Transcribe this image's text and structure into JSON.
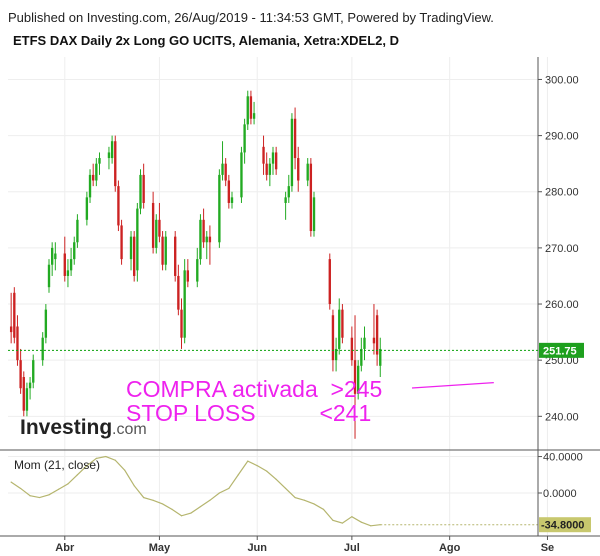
{
  "published": "Published on Investing.com, 26/Aug/2019 - 11:34:53 GMT, Powered by TradingView.",
  "title": "ETFS DAX Daily 2x Long GO UCITS, Alemania, Xetra:XDEL2, D",
  "logo": {
    "main": "Investing",
    "suffix": ".com"
  },
  "annotations": {
    "line1": "COMPRA activada  >245",
    "line2": "STOP LOSS          <241"
  },
  "colors": {
    "up": "#22aa22",
    "down": "#cc2222",
    "annotation": "#ee22ee",
    "momentum": "#b5b56e",
    "price_line": "#0aa00a"
  },
  "chart_data": [
    {
      "type": "candlestick",
      "title": "ETFS DAX Daily 2x Long GO UCITS, Alemania, Xetra:XDEL2, D",
      "ylim": [
        234,
        304
      ],
      "yticks": [
        "300.00",
        "290.00",
        "280.00",
        "270.00",
        "260.00",
        "250.00",
        "240.00"
      ],
      "xticks": [
        {
          "label": "Abr",
          "day": 17
        },
        {
          "label": "May",
          "day": 47
        },
        {
          "label": "Jun",
          "day": 78
        },
        {
          "label": "Jul",
          "day": 108
        },
        {
          "label": "Ago",
          "day": 139
        },
        {
          "label": "Se",
          "day": 170
        }
      ],
      "xrange": [
        -1,
        167
      ],
      "last_price": 251.75,
      "last_price_label": "251.75",
      "annotation_target": {
        "day": 153,
        "price": 246
      },
      "candles": [
        {
          "d": 0,
          "o": 256,
          "h": 262,
          "l": 253,
          "c": 255
        },
        {
          "d": 1,
          "o": 262,
          "h": 263,
          "l": 253,
          "c": 254
        },
        {
          "d": 2,
          "o": 256,
          "h": 258,
          "l": 249,
          "c": 250
        },
        {
          "d": 3,
          "o": 250,
          "h": 252,
          "l": 244,
          "c": 245
        },
        {
          "d": 4,
          "o": 247,
          "h": 248,
          "l": 240,
          "c": 241
        },
        {
          "d": 5,
          "o": 241,
          "h": 246,
          "l": 240,
          "c": 245
        },
        {
          "d": 6,
          "o": 245,
          "h": 247,
          "l": 243,
          "c": 246
        },
        {
          "d": 7,
          "o": 246,
          "h": 251,
          "l": 245,
          "c": 250
        },
        {
          "d": 10,
          "o": 250,
          "h": 255,
          "l": 249,
          "c": 254
        },
        {
          "d": 11,
          "o": 254,
          "h": 260,
          "l": 253,
          "c": 259
        },
        {
          "d": 12,
          "o": 263,
          "h": 268,
          "l": 262,
          "c": 267
        },
        {
          "d": 13,
          "o": 267,
          "h": 271,
          "l": 265,
          "c": 270
        },
        {
          "d": 14,
          "o": 268,
          "h": 271,
          "l": 266,
          "c": 269
        },
        {
          "d": 17,
          "o": 269,
          "h": 272,
          "l": 264,
          "c": 265
        },
        {
          "d": 18,
          "o": 265,
          "h": 268,
          "l": 263,
          "c": 266
        },
        {
          "d": 19,
          "o": 266,
          "h": 270,
          "l": 265,
          "c": 268
        },
        {
          "d": 20,
          "o": 268,
          "h": 272,
          "l": 267,
          "c": 271
        },
        {
          "d": 21,
          "o": 271,
          "h": 276,
          "l": 270,
          "c": 275
        },
        {
          "d": 24,
          "o": 275,
          "h": 280,
          "l": 274,
          "c": 279
        },
        {
          "d": 25,
          "o": 279,
          "h": 284,
          "l": 278,
          "c": 283
        },
        {
          "d": 26,
          "o": 283,
          "h": 285,
          "l": 281,
          "c": 282
        },
        {
          "d": 27,
          "o": 282,
          "h": 286,
          "l": 281,
          "c": 285
        },
        {
          "d": 28,
          "o": 285,
          "h": 287,
          "l": 283,
          "c": 286
        },
        {
          "d": 31,
          "o": 286,
          "h": 288,
          "l": 284,
          "c": 287
        },
        {
          "d": 32,
          "o": 286,
          "h": 290,
          "l": 285,
          "c": 289
        },
        {
          "d": 33,
          "o": 289,
          "h": 290,
          "l": 280,
          "c": 281
        },
        {
          "d": 34,
          "o": 281,
          "h": 282,
          "l": 273,
          "c": 274
        },
        {
          "d": 35,
          "o": 274,
          "h": 275,
          "l": 267,
          "c": 268
        },
        {
          "d": 38,
          "o": 268,
          "h": 273,
          "l": 266,
          "c": 272
        },
        {
          "d": 39,
          "o": 272,
          "h": 273,
          "l": 264,
          "c": 265
        },
        {
          "d": 40,
          "o": 266,
          "h": 278,
          "l": 264,
          "c": 277
        },
        {
          "d": 41,
          "o": 277,
          "h": 284,
          "l": 276,
          "c": 283
        },
        {
          "d": 42,
          "o": 283,
          "h": 285,
          "l": 277,
          "c": 278
        },
        {
          "d": 45,
          "o": 278,
          "h": 280,
          "l": 269,
          "c": 270
        },
        {
          "d": 46,
          "o": 270,
          "h": 276,
          "l": 269,
          "c": 275
        },
        {
          "d": 47,
          "o": 275,
          "h": 278,
          "l": 271,
          "c": 272
        },
        {
          "d": 48,
          "o": 272,
          "h": 273,
          "l": 266,
          "c": 267
        },
        {
          "d": 49,
          "o": 267,
          "h": 273,
          "l": 266,
          "c": 272
        },
        {
          "d": 52,
          "o": 272,
          "h": 273,
          "l": 264,
          "c": 265
        },
        {
          "d": 53,
          "o": 265,
          "h": 267,
          "l": 258,
          "c": 259
        },
        {
          "d": 54,
          "o": 259,
          "h": 261,
          "l": 252,
          "c": 254
        },
        {
          "d": 55,
          "o": 254,
          "h": 268,
          "l": 253,
          "c": 266
        },
        {
          "d": 56,
          "o": 266,
          "h": 268,
          "l": 263,
          "c": 264
        },
        {
          "d": 59,
          "o": 264,
          "h": 270,
          "l": 263,
          "c": 268
        },
        {
          "d": 60,
          "o": 268,
          "h": 276,
          "l": 267,
          "c": 275
        },
        {
          "d": 61,
          "o": 275,
          "h": 277,
          "l": 270,
          "c": 271
        },
        {
          "d": 62,
          "o": 271,
          "h": 273,
          "l": 268,
          "c": 272
        },
        {
          "d": 63,
          "o": 272,
          "h": 274,
          "l": 267,
          "c": 271
        },
        {
          "d": 66,
          "o": 271,
          "h": 284,
          "l": 270,
          "c": 283
        },
        {
          "d": 67,
          "o": 283,
          "h": 289,
          "l": 282,
          "c": 285
        },
        {
          "d": 68,
          "o": 285,
          "h": 286,
          "l": 281,
          "c": 282
        },
        {
          "d": 69,
          "o": 282,
          "h": 283,
          "l": 277,
          "c": 278
        },
        {
          "d": 70,
          "o": 278,
          "h": 280,
          "l": 277,
          "c": 279
        },
        {
          "d": 73,
          "o": 279,
          "h": 288,
          "l": 278,
          "c": 287
        },
        {
          "d": 74,
          "o": 287,
          "h": 293,
          "l": 285,
          "c": 292
        },
        {
          "d": 75,
          "o": 292,
          "h": 298,
          "l": 291,
          "c": 297
        },
        {
          "d": 76,
          "o": 297,
          "h": 298,
          "l": 292,
          "c": 293
        },
        {
          "d": 77,
          "o": 293,
          "h": 296,
          "l": 292,
          "c": 294
        },
        {
          "d": 80,
          "o": 288,
          "h": 290,
          "l": 283,
          "c": 285
        },
        {
          "d": 81,
          "o": 285,
          "h": 287,
          "l": 282,
          "c": 283
        },
        {
          "d": 82,
          "o": 283,
          "h": 286,
          "l": 281,
          "c": 285
        },
        {
          "d": 83,
          "o": 285,
          "h": 288,
          "l": 283,
          "c": 287
        },
        {
          "d": 84,
          "o": 287,
          "h": 288,
          "l": 283,
          "c": 284
        },
        {
          "d": 87,
          "o": 278,
          "h": 280,
          "l": 275,
          "c": 279
        },
        {
          "d": 88,
          "o": 279,
          "h": 283,
          "l": 278,
          "c": 281
        },
        {
          "d": 89,
          "o": 281,
          "h": 294,
          "l": 280,
          "c": 293
        },
        {
          "d": 90,
          "o": 293,
          "h": 295,
          "l": 284,
          "c": 286
        },
        {
          "d": 91,
          "o": 286,
          "h": 288,
          "l": 280,
          "c": 282
        },
        {
          "d": 94,
          "o": 282,
          "h": 286,
          "l": 281,
          "c": 285
        },
        {
          "d": 95,
          "o": 285,
          "h": 286,
          "l": 272,
          "c": 273
        },
        {
          "d": 96,
          "o": 273,
          "h": 280,
          "l": 272,
          "c": 279
        },
        {
          "d": 101,
          "o": 268,
          "h": 269,
          "l": 259,
          "c": 260
        },
        {
          "d": 102,
          "o": 258,
          "h": 259,
          "l": 248,
          "c": 250
        },
        {
          "d": 103,
          "o": 250,
          "h": 254,
          "l": 248,
          "c": 252
        },
        {
          "d": 104,
          "o": 252,
          "h": 261,
          "l": 251,
          "c": 259
        },
        {
          "d": 105,
          "o": 259,
          "h": 260,
          "l": 253,
          "c": 254
        },
        {
          "d": 108,
          "o": 254,
          "h": 256,
          "l": 249,
          "c": 250
        },
        {
          "d": 109,
          "o": 250,
          "h": 258,
          "l": 236,
          "c": 244
        },
        {
          "d": 110,
          "o": 244,
          "h": 250,
          "l": 243,
          "c": 249
        },
        {
          "d": 111,
          "o": 249,
          "h": 254,
          "l": 248,
          "c": 252
        },
        {
          "d": 112,
          "o": 252,
          "h": 256,
          "l": 250,
          "c": 254
        },
        {
          "d": 115,
          "o": 254,
          "h": 260,
          "l": 251,
          "c": 253
        },
        {
          "d": 116,
          "o": 258,
          "h": 259,
          "l": 249,
          "c": 251
        },
        {
          "d": 117,
          "o": 249,
          "h": 254,
          "l": 247,
          "c": 252
        }
      ]
    },
    {
      "type": "line",
      "title": "Mom (21, close)",
      "ylim": [
        -45,
        45
      ],
      "yticks": [
        "40.0000",
        "0.0000"
      ],
      "last_value": -34.8,
      "last_value_label": "-34.8000",
      "x": [
        0,
        3,
        6,
        9,
        12,
        15,
        18,
        21,
        24,
        27,
        30,
        33,
        36,
        39,
        42,
        45,
        48,
        51,
        54,
        57,
        60,
        63,
        66,
        69,
        72,
        75,
        78,
        81,
        84,
        87,
        90,
        93,
        96,
        99,
        102,
        105,
        108,
        111,
        114,
        117
      ],
      "values": [
        12,
        5,
        -3,
        -5,
        -2,
        4,
        10,
        20,
        30,
        38,
        40,
        36,
        25,
        8,
        -5,
        -8,
        -12,
        -18,
        -25,
        -22,
        -15,
        -8,
        0,
        5,
        20,
        35,
        30,
        24,
        15,
        5,
        -5,
        -8,
        -12,
        -18,
        -30,
        -33,
        -26,
        -32,
        -36,
        -34.8
      ]
    }
  ]
}
